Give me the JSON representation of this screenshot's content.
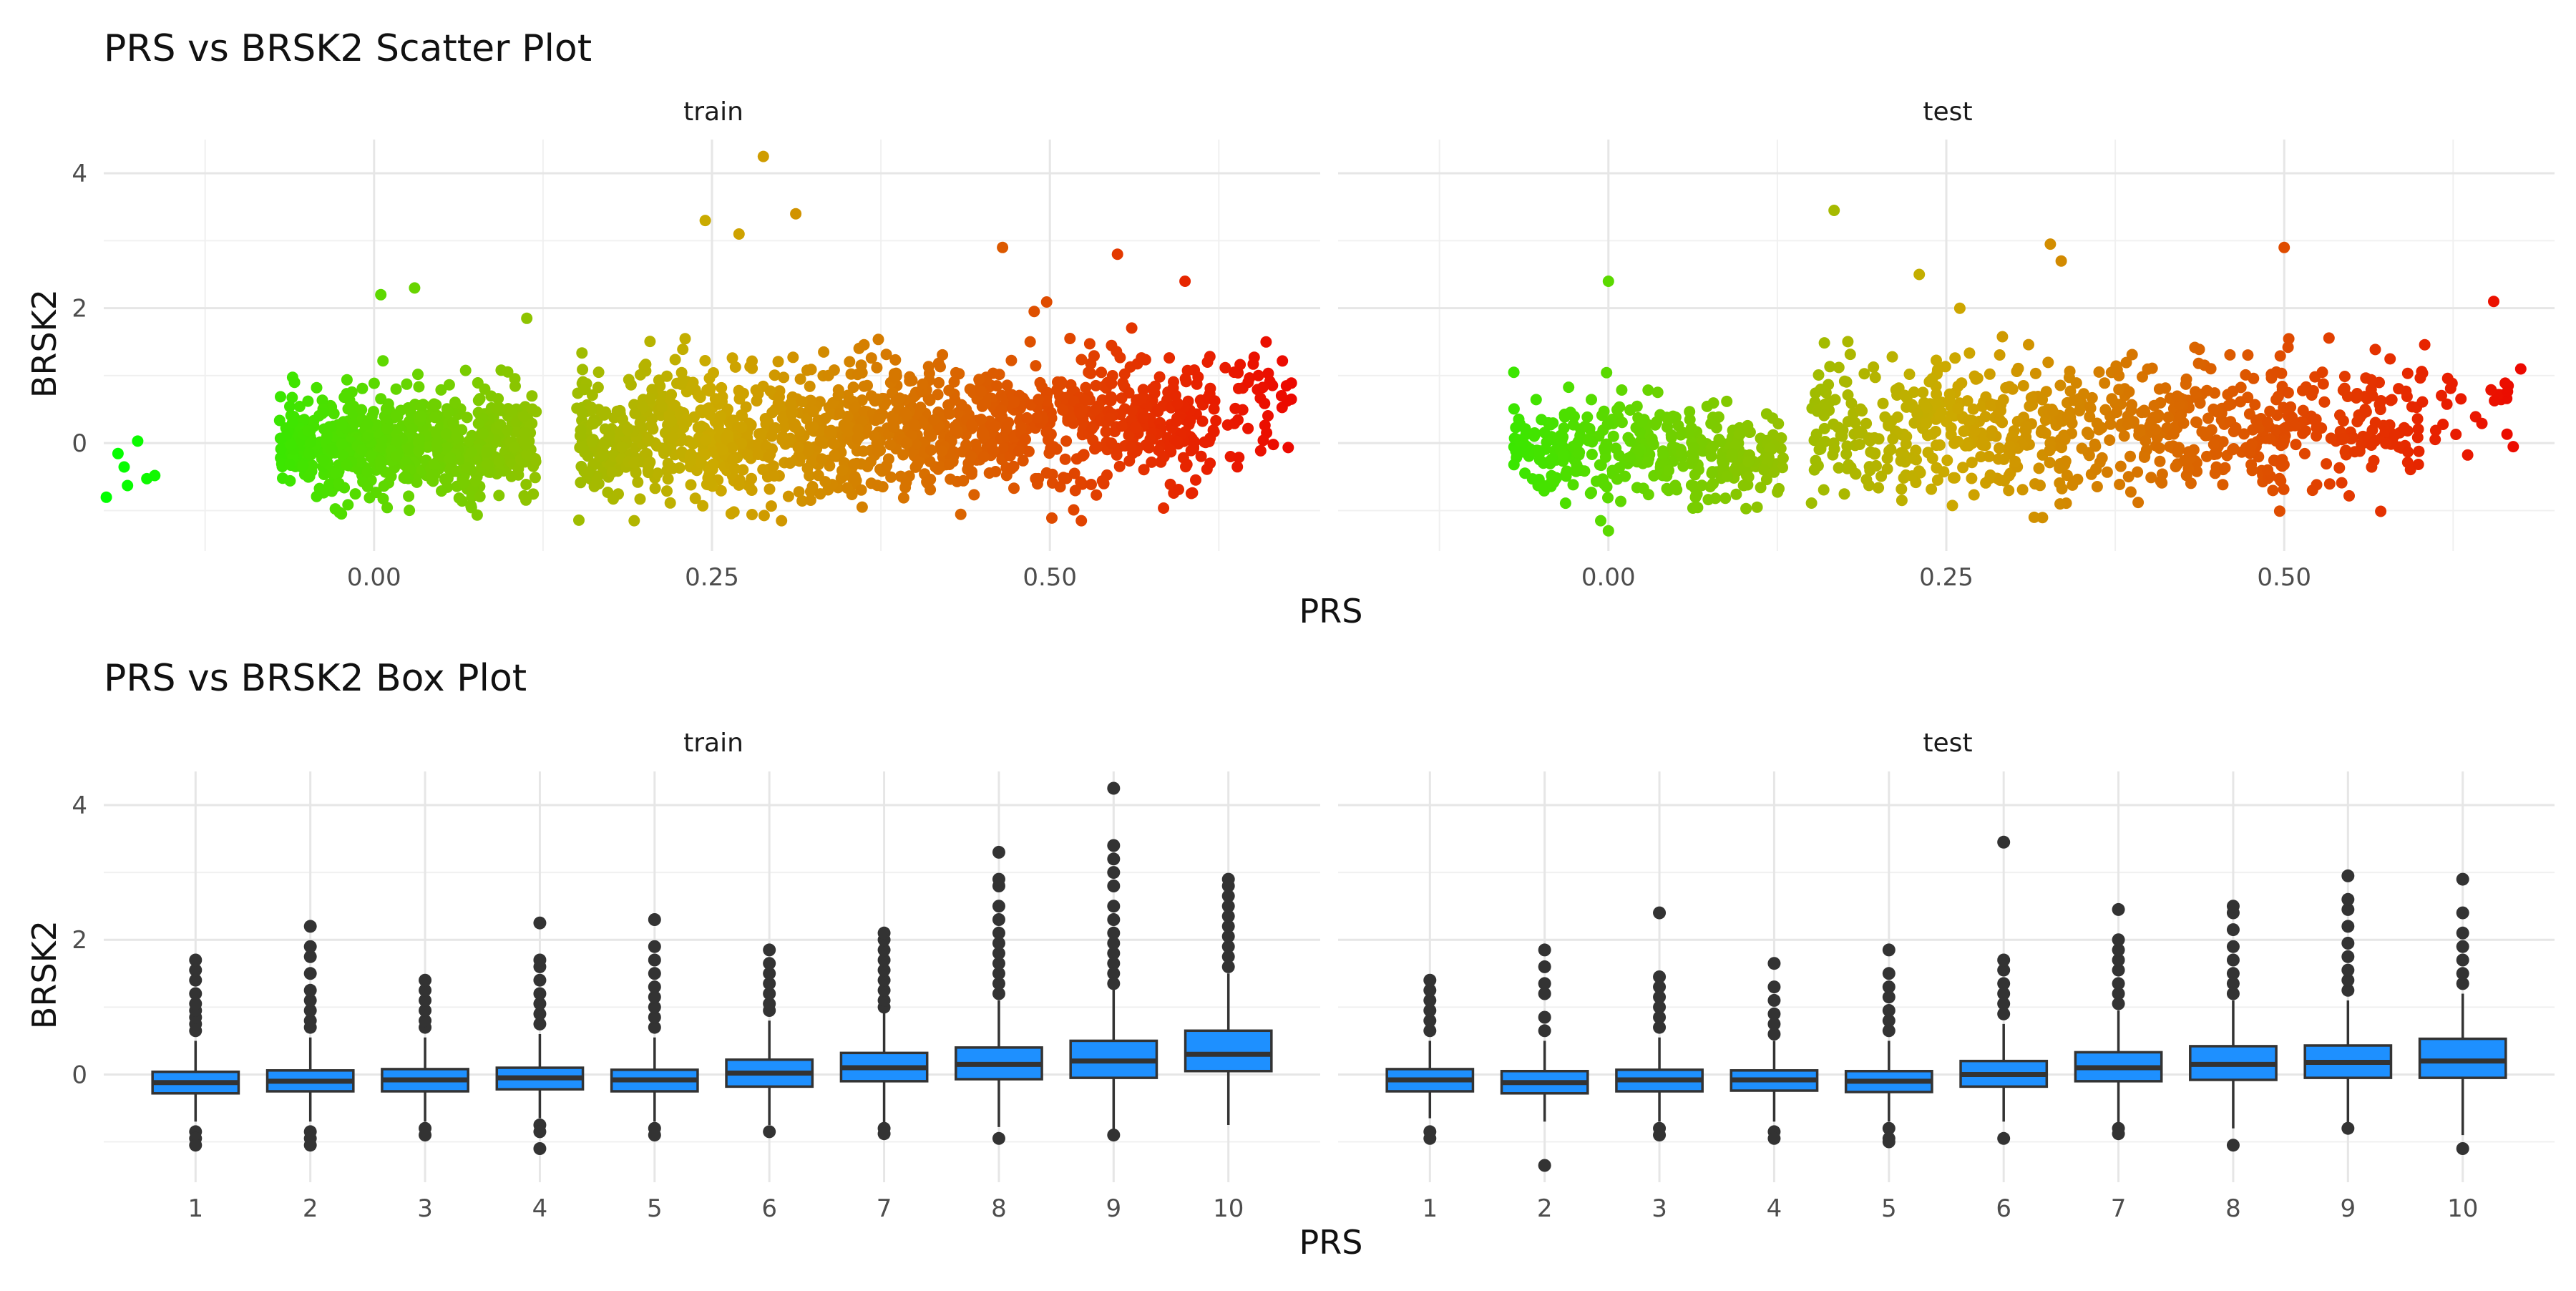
{
  "colors": {
    "scatter_low": "#00ff00",
    "scatter_mid": "#ccaa00",
    "scatter_high": "#ee0000",
    "box_fill": "#1e90ff",
    "box_line": "#333333",
    "outlier": "#333333",
    "grid": "#ebebeb"
  },
  "chart_data": [
    {
      "type": "scatter",
      "title": "PRS vs BRSK2 Scatter Plot",
      "xlabel": "PRS",
      "ylabel": "BRSK2",
      "facets": [
        "train",
        "test"
      ],
      "xlim": [
        -0.2,
        0.7
      ],
      "ylim": [
        -1.6,
        4.5
      ],
      "x_ticks": [
        "0.00",
        "0.25",
        "0.50"
      ],
      "y_ticks": [
        "0",
        "2",
        "4"
      ],
      "grid": true,
      "series": [
        {
          "facet": "train",
          "clusters": [
            {
              "x_range": [
                -0.2,
                -0.16
              ],
              "y_mean": -0.1,
              "y_sd": 0.35,
              "n": 7
            },
            {
              "x_range": [
                -0.07,
                0.12
              ],
              "y_mean": -0.05,
              "y_sd": 0.38,
              "n": 700
            },
            {
              "x_range": [
                0.15,
                0.37
              ],
              "y_mean": 0.15,
              "y_sd": 0.5,
              "n": 650
            },
            {
              "x_range": [
                0.37,
                0.47
              ],
              "y_mean": 0.2,
              "y_sd": 0.45,
              "n": 300
            },
            {
              "x_range": [
                0.47,
                0.62
              ],
              "y_mean": 0.3,
              "y_sd": 0.5,
              "n": 330
            },
            {
              "x_range": [
                0.62,
                0.68
              ],
              "y_mean": 0.45,
              "y_sd": 0.5,
              "n": 45
            }
          ],
          "highlights": [
            [
              0.288,
              4.25
            ],
            [
              0.312,
              3.4
            ],
            [
              0.245,
              3.3
            ],
            [
              0.27,
              3.1
            ],
            [
              0.465,
              2.9
            ],
            [
              0.03,
              2.3
            ],
            [
              0.005,
              2.2
            ],
            [
              0.113,
              1.85
            ],
            [
              0.6,
              2.4
            ],
            [
              0.675,
              0.85
            ],
            [
              0.66,
              1.5
            ],
            [
              0.55,
              2.8
            ]
          ]
        },
        {
          "facet": "test",
          "clusters": [
            {
              "x_range": [
                -0.07,
                0.13
              ],
              "y_mean": -0.1,
              "y_sd": 0.36,
              "n": 380
            },
            {
              "x_range": [
                0.15,
                0.37
              ],
              "y_mean": 0.2,
              "y_sd": 0.48,
              "n": 380
            },
            {
              "x_range": [
                0.37,
                0.5
              ],
              "y_mean": 0.25,
              "y_sd": 0.45,
              "n": 230
            },
            {
              "x_range": [
                0.5,
                0.6
              ],
              "y_mean": 0.3,
              "y_sd": 0.45,
              "n": 130
            },
            {
              "x_range": [
                0.6,
                0.67
              ],
              "y_mean": 0.5,
              "y_sd": 0.45,
              "n": 30
            }
          ],
          "highlights": [
            [
              0.167,
              3.45
            ],
            [
              0.327,
              2.95
            ],
            [
              0.335,
              2.7
            ],
            [
              0.5,
              2.9
            ],
            [
              -0.07,
              1.05
            ],
            [
              0.0,
              2.4
            ],
            [
              0.0,
              -1.3
            ],
            [
              0.655,
              2.1
            ],
            [
              0.675,
              1.1
            ],
            [
              0.315,
              -1.1
            ],
            [
              0.11,
              -0.95
            ],
            [
              0.23,
              2.5
            ],
            [
              0.26,
              2.0
            ]
          ]
        }
      ]
    },
    {
      "type": "box",
      "title": "PRS vs BRSK2 Box Plot",
      "xlabel": "PRS",
      "ylabel": "BRSK2",
      "facets": [
        "train",
        "test"
      ],
      "categories": [
        "1",
        "2",
        "3",
        "4",
        "5",
        "6",
        "7",
        "8",
        "9",
        "10"
      ],
      "ylim": [
        -1.6,
        4.5
      ],
      "y_ticks": [
        "0",
        "2",
        "4"
      ],
      "grid": true,
      "series": [
        {
          "facet": "train",
          "boxes": [
            {
              "q1": -0.28,
              "median": -0.12,
              "q3": 0.04,
              "lower": -0.7,
              "upper": 0.5
            },
            {
              "q1": -0.25,
              "median": -0.1,
              "q3": 0.06,
              "lower": -0.7,
              "upper": 0.55
            },
            {
              "q1": -0.25,
              "median": -0.08,
              "q3": 0.08,
              "lower": -0.7,
              "upper": 0.55
            },
            {
              "q1": -0.22,
              "median": -0.05,
              "q3": 0.1,
              "lower": -0.65,
              "upper": 0.6
            },
            {
              "q1": -0.25,
              "median": -0.08,
              "q3": 0.07,
              "lower": -0.7,
              "upper": 0.55
            },
            {
              "q1": -0.18,
              "median": 0.02,
              "q3": 0.22,
              "lower": -0.75,
              "upper": 0.8
            },
            {
              "q1": -0.1,
              "median": 0.1,
              "q3": 0.32,
              "lower": -0.75,
              "upper": 0.95
            },
            {
              "q1": -0.07,
              "median": 0.15,
              "q3": 0.4,
              "lower": -0.78,
              "upper": 1.1
            },
            {
              "q1": -0.05,
              "median": 0.2,
              "q3": 0.5,
              "lower": -0.85,
              "upper": 1.3
            },
            {
              "q1": 0.05,
              "median": 0.3,
              "q3": 0.65,
              "lower": -0.75,
              "upper": 1.5
            }
          ],
          "outliers": [
            [
              -0.85,
              -0.95,
              -1.05,
              0.65,
              0.75,
              0.85,
              0.95,
              1.05,
              1.2,
              1.4,
              1.55,
              1.7
            ],
            [
              -0.85,
              -0.95,
              -1.05,
              0.7,
              0.8,
              0.95,
              1.1,
              1.25,
              1.5,
              1.75,
              1.9,
              2.2
            ],
            [
              -0.8,
              -0.9,
              0.7,
              0.8,
              0.95,
              1.1,
              1.25,
              1.4
            ],
            [
              -0.75,
              -0.85,
              -1.1,
              0.75,
              0.9,
              1.05,
              1.2,
              1.4,
              1.6,
              1.7,
              2.25
            ],
            [
              -0.8,
              -0.9,
              0.7,
              0.85,
              1.0,
              1.15,
              1.3,
              1.5,
              1.7,
              1.9,
              2.3
            ],
            [
              -0.85,
              0.95,
              1.05,
              1.2,
              1.35,
              1.5,
              1.65,
              1.85
            ],
            [
              -0.8,
              -0.88,
              1.0,
              1.1,
              1.25,
              1.4,
              1.55,
              1.7,
              1.85,
              2.0,
              2.1
            ],
            [
              -0.95,
              1.2,
              1.35,
              1.5,
              1.65,
              1.8,
              1.95,
              2.1,
              2.3,
              2.5,
              2.8,
              2.9,
              3.3
            ],
            [
              -0.9,
              1.35,
              1.5,
              1.65,
              1.8,
              1.95,
              2.1,
              2.3,
              2.5,
              2.8,
              3.0,
              3.2,
              3.4,
              4.25
            ],
            [
              1.6,
              1.75,
              1.9,
              2.05,
              2.2,
              2.35,
              2.5,
              2.65,
              2.8,
              2.9
            ]
          ]
        },
        {
          "facet": "test",
          "boxes": [
            {
              "q1": -0.25,
              "median": -0.08,
              "q3": 0.08,
              "lower": -0.65,
              "upper": 0.5
            },
            {
              "q1": -0.28,
              "median": -0.12,
              "q3": 0.05,
              "lower": -0.7,
              "upper": 0.5
            },
            {
              "q1": -0.25,
              "median": -0.08,
              "q3": 0.07,
              "lower": -0.7,
              "upper": 0.55
            },
            {
              "q1": -0.24,
              "median": -0.08,
              "q3": 0.06,
              "lower": -0.7,
              "upper": 0.5
            },
            {
              "q1": -0.26,
              "median": -0.1,
              "q3": 0.05,
              "lower": -0.7,
              "upper": 0.5
            },
            {
              "q1": -0.18,
              "median": 0.0,
              "q3": 0.2,
              "lower": -0.7,
              "upper": 0.75
            },
            {
              "q1": -0.1,
              "median": 0.1,
              "q3": 0.33,
              "lower": -0.75,
              "upper": 0.95
            },
            {
              "q1": -0.08,
              "median": 0.15,
              "q3": 0.42,
              "lower": -0.8,
              "upper": 1.1
            },
            {
              "q1": -0.05,
              "median": 0.18,
              "q3": 0.43,
              "lower": -0.75,
              "upper": 1.1
            },
            {
              "q1": -0.05,
              "median": 0.2,
              "q3": 0.53,
              "lower": -0.9,
              "upper": 1.2
            }
          ],
          "outliers": [
            [
              -0.85,
              -0.95,
              0.65,
              0.8,
              0.95,
              1.1,
              1.25,
              1.4
            ],
            [
              -1.35,
              0.65,
              0.85,
              1.2,
              1.35,
              1.6,
              1.85
            ],
            [
              -0.8,
              -0.9,
              0.7,
              0.85,
              1.0,
              1.15,
              1.3,
              1.45,
              2.4
            ],
            [
              -0.85,
              -0.95,
              0.6,
              0.75,
              0.9,
              1.1,
              1.3,
              1.65
            ],
            [
              -0.8,
              -0.95,
              -1.0,
              0.65,
              0.8,
              0.95,
              1.15,
              1.3,
              1.5,
              1.85
            ],
            [
              -0.95,
              0.9,
              1.05,
              1.2,
              1.35,
              1.55,
              1.7,
              3.45
            ],
            [
              -0.8,
              -0.88,
              1.05,
              1.2,
              1.35,
              1.55,
              1.7,
              1.85,
              2.0,
              2.45
            ],
            [
              -1.05,
              1.2,
              1.35,
              1.5,
              1.7,
              1.9,
              2.15,
              2.4,
              2.5
            ],
            [
              -0.8,
              1.25,
              1.4,
              1.55,
              1.75,
              1.95,
              2.2,
              2.45,
              2.6,
              2.95
            ],
            [
              -1.1,
              1.35,
              1.5,
              1.7,
              1.9,
              2.1,
              2.4,
              2.9
            ]
          ]
        }
      ]
    }
  ]
}
